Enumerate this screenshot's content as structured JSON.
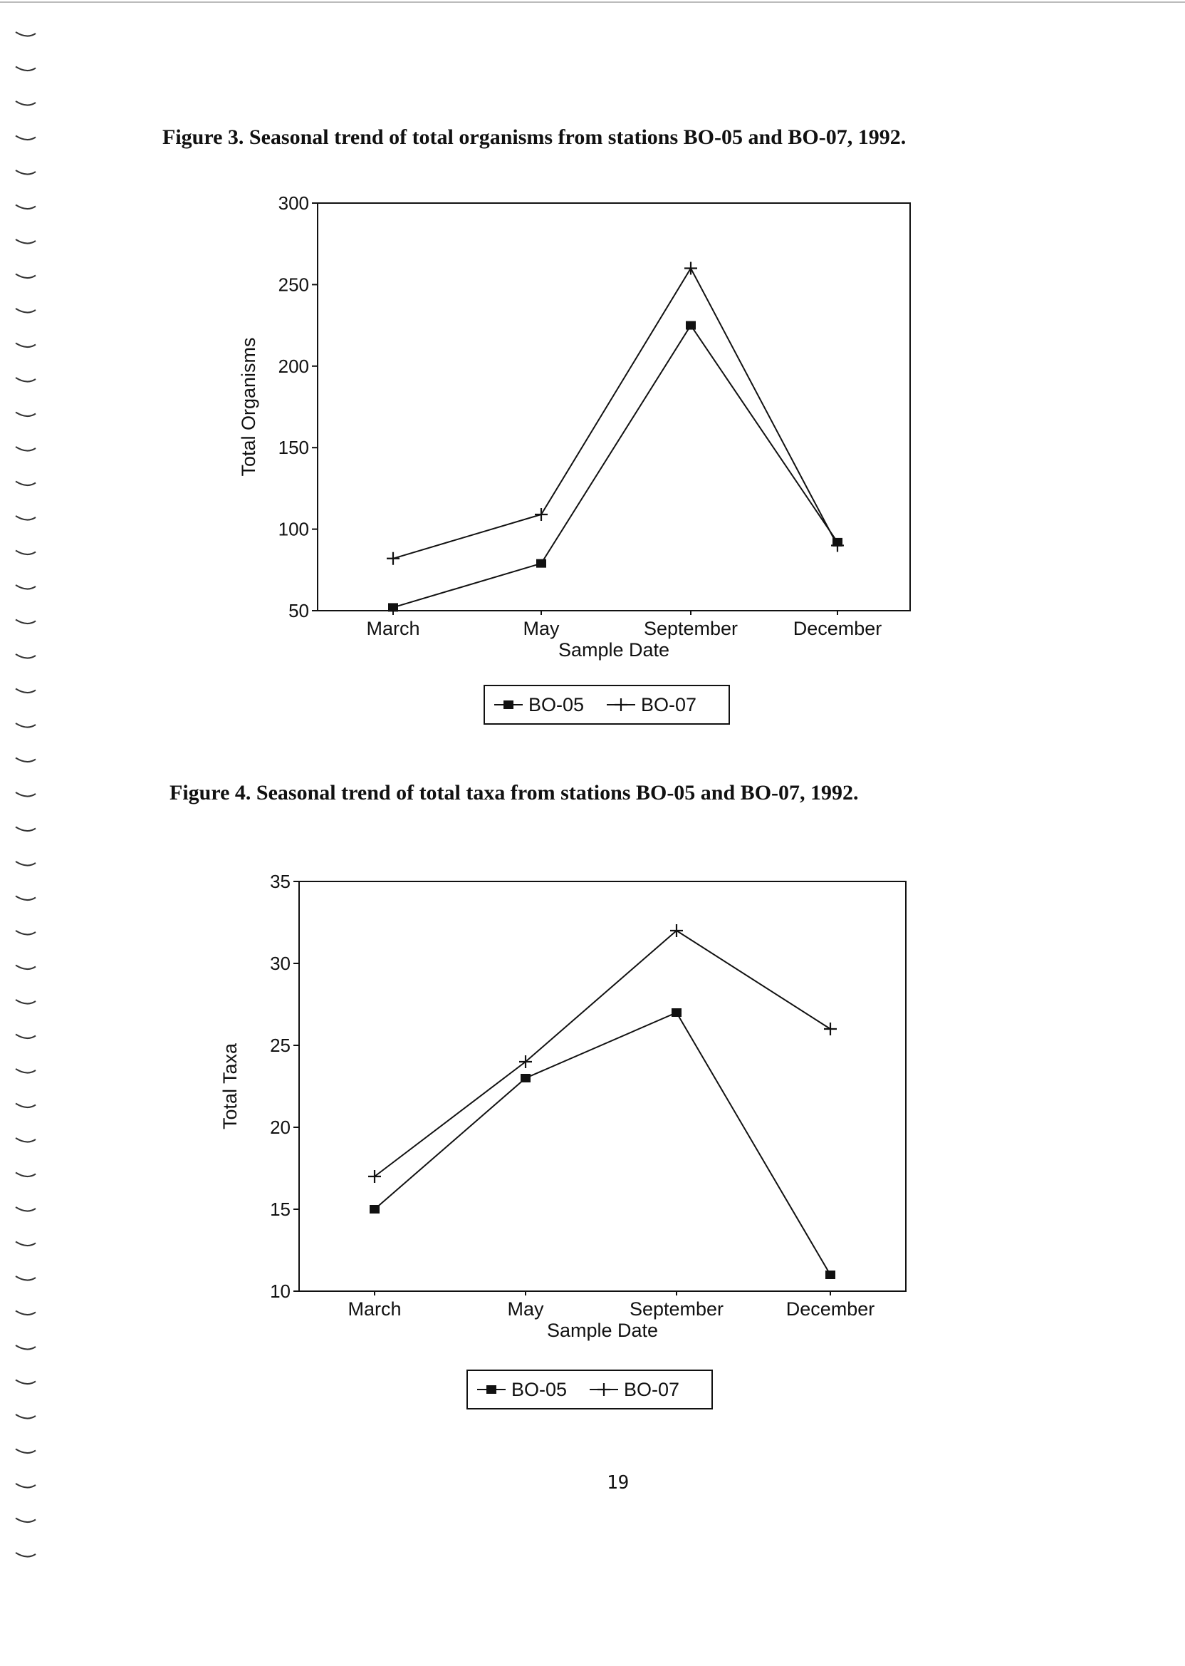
{
  "page": {
    "page_number": "19"
  },
  "chart_data": [
    {
      "type": "line",
      "title": "Figure 3.  Seasonal trend of total organisms from stations BO-05 and BO-07, 1992.",
      "xlabel": "Sample Date",
      "ylabel": "Total Organisms",
      "categories": [
        "March",
        "May",
        "September",
        "December"
      ],
      "ylim": [
        50,
        300
      ],
      "yticks": [
        "50",
        "100",
        "150",
        "200",
        "250",
        "300"
      ],
      "series": [
        {
          "name": "BO-05",
          "marker": "square",
          "values": [
            52,
            79,
            225,
            92
          ]
        },
        {
          "name": "BO-07",
          "marker": "plus",
          "values": [
            82,
            109,
            260,
            90
          ]
        }
      ],
      "legend": "bottom-center",
      "grid": false
    },
    {
      "type": "line",
      "title": "Figure 4. Seasonal trend of total taxa from stations BO-05 and BO-07, 1992.",
      "xlabel": "Sample Date",
      "ylabel": "Total Taxa",
      "categories": [
        "March",
        "May",
        "September",
        "December"
      ],
      "ylim": [
        10,
        35
      ],
      "yticks": [
        "10",
        "15",
        "20",
        "25",
        "30",
        "35"
      ],
      "series": [
        {
          "name": "BO-05",
          "marker": "square",
          "values": [
            15,
            23,
            27,
            11
          ]
        },
        {
          "name": "BO-07",
          "marker": "plus",
          "values": [
            17,
            24,
            32,
            26
          ]
        }
      ],
      "legend": "bottom-center",
      "grid": false
    }
  ],
  "colors": {
    "ink": "#111111"
  }
}
